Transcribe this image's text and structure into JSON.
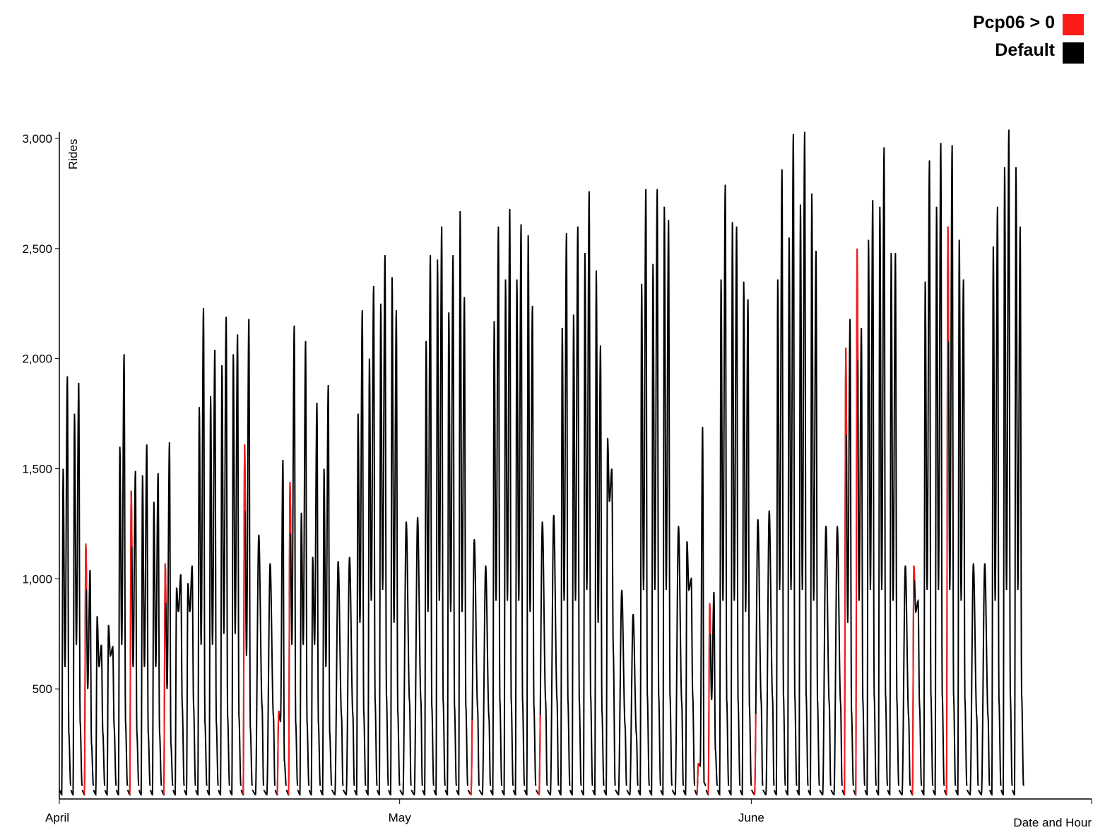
{
  "colors": {
    "default": "#000000",
    "highlight": "#ff1a1a"
  },
  "legend": {
    "placement": "top-right",
    "items": [
      {
        "label": "Pcp06 > 0",
        "color": "#ff1a1a"
      },
      {
        "label": "Default",
        "color": "#000000"
      }
    ]
  },
  "chart_data": {
    "type": "line",
    "title": "",
    "xlabel": "Date and Hour",
    "ylabel": "Rides",
    "x_range": [
      "2014-04-01",
      "2014-07-01"
    ],
    "ylim": [
      0,
      3000
    ],
    "y_ticks": [
      {
        "value": 500,
        "label": "500"
      },
      {
        "value": 1000,
        "label": "1,000"
      },
      {
        "value": 1500,
        "label": "1,500"
      },
      {
        "value": 2000,
        "label": "2,000"
      },
      {
        "value": 2500,
        "label": "2,500"
      },
      {
        "value": 3000,
        "label": "3,000"
      }
    ],
    "x_ticks": [
      {
        "date": "2014-04-01",
        "label": "April"
      },
      {
        "date": "2014-05-01",
        "label": "May"
      },
      {
        "date": "2014-06-01",
        "label": "June"
      }
    ],
    "grid": false,
    "series": [
      {
        "name": "Default",
        "color": "#000000"
      },
      {
        "name": "Pcp06 > 0",
        "color": "#ff1a1a"
      }
    ],
    "daily": [
      {
        "date": "2014-04-01",
        "am": 1500,
        "pm": 1920,
        "mid": 600
      },
      {
        "date": "2014-04-02",
        "am": 1750,
        "pm": 1890,
        "mid": 700
      },
      {
        "date": "2014-04-03",
        "am": 1160,
        "pm": 1040,
        "mid": 500,
        "rain": true
      },
      {
        "date": "2014-04-04",
        "am": 830,
        "pm": 700,
        "mid": 600
      },
      {
        "date": "2014-04-05",
        "am": 790,
        "pm": 690,
        "mid": 650
      },
      {
        "date": "2014-04-06",
        "am": 1600,
        "pm": 2020,
        "mid": 700
      },
      {
        "date": "2014-04-07",
        "am": 1400,
        "pm": 1490,
        "mid": 600,
        "rain": true
      },
      {
        "date": "2014-04-08",
        "am": 1470,
        "pm": 1610,
        "mid": 600
      },
      {
        "date": "2014-04-09",
        "am": 1350,
        "pm": 1480,
        "mid": 600
      },
      {
        "date": "2014-04-10",
        "am": 1070,
        "pm": 1620,
        "mid": 500,
        "rain": true
      },
      {
        "date": "2014-04-11",
        "am": 960,
        "pm": 1020,
        "mid": 850
      },
      {
        "date": "2014-04-12",
        "am": 980,
        "pm": 1060,
        "mid": 850
      },
      {
        "date": "2014-04-13",
        "am": 1780,
        "pm": 2230,
        "mid": 700
      },
      {
        "date": "2014-04-14",
        "am": 1830,
        "pm": 2040,
        "mid": 700
      },
      {
        "date": "2014-04-15",
        "am": 1970,
        "pm": 2190,
        "mid": 750
      },
      {
        "date": "2014-04-16",
        "am": 2020,
        "pm": 2110,
        "mid": 750
      },
      {
        "date": "2014-04-17",
        "am": 1610,
        "pm": 2180,
        "mid": 650,
        "rain": true
      },
      {
        "date": "2014-04-18",
        "am": 1150,
        "pm": 1200,
        "mid": 1050
      },
      {
        "date": "2014-04-19",
        "am": 1070,
        "pm": 1060,
        "mid": 950
      },
      {
        "date": "2014-04-20",
        "am": 400,
        "pm": 1540,
        "mid": 350,
        "rain": true
      },
      {
        "date": "2014-04-21",
        "am": 1440,
        "pm": 2150,
        "mid": 700,
        "rain": true
      },
      {
        "date": "2014-04-22",
        "am": 1300,
        "pm": 2080,
        "mid": 700
      },
      {
        "date": "2014-04-23",
        "am": 1100,
        "pm": 1800,
        "mid": 700
      },
      {
        "date": "2014-04-24",
        "am": 1500,
        "pm": 1880,
        "mid": 600
      },
      {
        "date": "2014-04-25",
        "am": 1080,
        "pm": 1030,
        "mid": 950
      },
      {
        "date": "2014-04-26",
        "am": 1050,
        "pm": 1100,
        "mid": 950
      },
      {
        "date": "2014-04-27",
        "am": 1750,
        "pm": 2220,
        "mid": 800
      },
      {
        "date": "2014-04-28",
        "am": 2000,
        "pm": 2330,
        "mid": 900
      },
      {
        "date": "2014-04-29",
        "am": 2250,
        "pm": 2470,
        "mid": 950
      },
      {
        "date": "2014-04-30",
        "am": 2370,
        "pm": 2220,
        "mid": 800
      },
      {
        "date": "2014-05-01",
        "am": 1170,
        "pm": 1260,
        "mid": 1100
      },
      {
        "date": "2014-05-02",
        "am": 1280,
        "pm": 1270,
        "mid": 1100
      },
      {
        "date": "2014-05-03",
        "am": 2080,
        "pm": 2470,
        "mid": 850
      },
      {
        "date": "2014-05-04",
        "am": 2450,
        "pm": 2600,
        "mid": 900
      },
      {
        "date": "2014-05-05",
        "am": 2210,
        "pm": 2470,
        "mid": 850
      },
      {
        "date": "2014-05-06",
        "am": 2670,
        "pm": 2280,
        "mid": 850
      },
      {
        "date": "2014-05-07",
        "am": 1080,
        "pm": 1180,
        "mid": 1050,
        "rain": true
      },
      {
        "date": "2014-05-08",
        "am": 1000,
        "pm": 1060,
        "mid": 950
      },
      {
        "date": "2014-05-09",
        "am": 2170,
        "pm": 2600,
        "mid": 900
      },
      {
        "date": "2014-05-10",
        "am": 2360,
        "pm": 2680,
        "mid": 900
      },
      {
        "date": "2014-05-11",
        "am": 2360,
        "pm": 2610,
        "mid": 900
      },
      {
        "date": "2014-05-12",
        "am": 2560,
        "pm": 2240,
        "mid": 850
      },
      {
        "date": "2014-05-13",
        "am": 1260,
        "pm": 1250,
        "mid": 1100,
        "rain": true
      },
      {
        "date": "2014-05-14",
        "am": 1290,
        "pm": 1280,
        "mid": 1100
      },
      {
        "date": "2014-05-15",
        "am": 2140,
        "pm": 2570,
        "mid": 900
      },
      {
        "date": "2014-05-16",
        "am": 2200,
        "pm": 2600,
        "mid": 900
      },
      {
        "date": "2014-05-17",
        "am": 2480,
        "pm": 2760,
        "mid": 950
      },
      {
        "date": "2014-05-18",
        "am": 2400,
        "pm": 2060,
        "mid": 800
      },
      {
        "date": "2014-05-19",
        "am": 1640,
        "pm": 1500,
        "mid": 1350
      },
      {
        "date": "2014-05-20",
        "am": 950,
        "pm": 930,
        "mid": 850
      },
      {
        "date": "2014-05-21",
        "am": 820,
        "pm": 840,
        "mid": 780
      },
      {
        "date": "2014-05-22",
        "am": 2340,
        "pm": 2770,
        "mid": 950
      },
      {
        "date": "2014-05-23",
        "am": 2430,
        "pm": 2770,
        "mid": 950
      },
      {
        "date": "2014-05-24",
        "am": 2690,
        "pm": 2630,
        "mid": 950
      },
      {
        "date": "2014-05-25",
        "am": 1240,
        "pm": 1240,
        "mid": 1100
      },
      {
        "date": "2014-05-26",
        "am": 1170,
        "pm": 1000,
        "mid": 950
      },
      {
        "date": "2014-05-27",
        "am": 160,
        "pm": 1690,
        "mid": 150,
        "rain": true
      },
      {
        "date": "2014-05-28",
        "am": 890,
        "pm": 940,
        "mid": 450,
        "rain": true
      },
      {
        "date": "2014-05-29",
        "am": 2360,
        "pm": 2790,
        "mid": 900
      },
      {
        "date": "2014-05-30",
        "am": 2620,
        "pm": 2600,
        "mid": 900
      },
      {
        "date": "2014-05-31",
        "am": 2350,
        "pm": 2270,
        "mid": 850
      },
      {
        "date": "2014-06-01",
        "am": 1270,
        "pm": 1250,
        "mid": 1100,
        "rain": true
      },
      {
        "date": "2014-06-02",
        "am": 1300,
        "pm": 1310,
        "mid": 1150
      },
      {
        "date": "2014-06-03",
        "am": 2360,
        "pm": 2860,
        "mid": 950
      },
      {
        "date": "2014-06-04",
        "am": 2550,
        "pm": 3020,
        "mid": 950
      },
      {
        "date": "2014-06-05",
        "am": 2700,
        "pm": 3030,
        "mid": 950
      },
      {
        "date": "2014-06-06",
        "am": 2750,
        "pm": 2490,
        "mid": 900
      },
      {
        "date": "2014-06-07",
        "am": 1240,
        "pm": 1240,
        "mid": 1100
      },
      {
        "date": "2014-06-08",
        "am": 1240,
        "pm": 1210,
        "mid": 1050
      },
      {
        "date": "2014-06-09",
        "am": 2050,
        "pm": 2180,
        "mid": 800,
        "rain": true
      },
      {
        "date": "2014-06-10",
        "am": 2500,
        "pm": 2140,
        "mid": 900,
        "rain": true
      },
      {
        "date": "2014-06-11",
        "am": 2540,
        "pm": 2720,
        "mid": 950
      },
      {
        "date": "2014-06-12",
        "am": 2690,
        "pm": 2960,
        "mid": 950
      },
      {
        "date": "2014-06-13",
        "am": 2480,
        "pm": 2480,
        "mid": 900
      },
      {
        "date": "2014-06-14",
        "am": 1060,
        "pm": 1000,
        "mid": 900
      },
      {
        "date": "2014-06-15",
        "am": 1060,
        "pm": 900,
        "mid": 850,
        "rain": true
      },
      {
        "date": "2014-06-16",
        "am": 2350,
        "pm": 2900,
        "mid": 950
      },
      {
        "date": "2014-06-17",
        "am": 2690,
        "pm": 2980,
        "mid": 950
      },
      {
        "date": "2014-06-18",
        "am": 2600,
        "pm": 2970,
        "mid": 950,
        "rain": true
      },
      {
        "date": "2014-06-19",
        "am": 2540,
        "pm": 2360,
        "mid": 900
      },
      {
        "date": "2014-06-20",
        "am": 1060,
        "pm": 1070,
        "mid": 950
      },
      {
        "date": "2014-06-21",
        "am": 1070,
        "pm": 1000,
        "mid": 950
      },
      {
        "date": "2014-06-22",
        "am": 2510,
        "pm": 2690,
        "mid": 900
      },
      {
        "date": "2014-06-23",
        "am": 2870,
        "pm": 3040,
        "mid": 950
      },
      {
        "date": "2014-06-24",
        "am": 2870,
        "pm": 2600,
        "mid": 950
      }
    ]
  }
}
